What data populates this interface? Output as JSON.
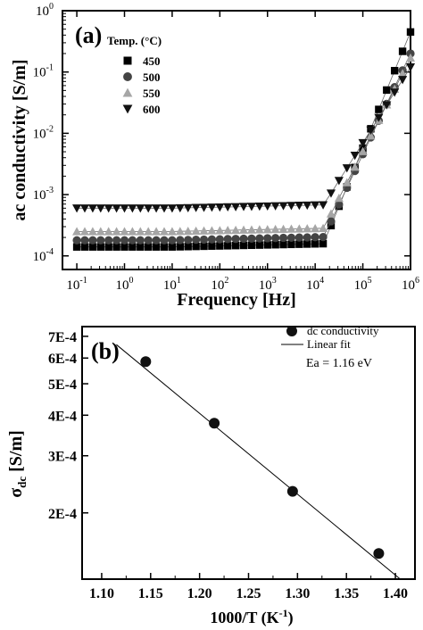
{
  "chart_data": [
    {
      "panel_label": "(a)",
      "type": "scatter",
      "xlabel": "Frequency [Hz]",
      "ylabel": "ac conductivity [S/m]",
      "xscale": "log",
      "yscale": "log",
      "xlim": [
        0.05,
        1000000
      ],
      "ylim": [
        6e-05,
        1
      ],
      "x_ticks": [
        {
          "value": 0.1,
          "base": "10",
          "exp": "-1"
        },
        {
          "value": 1,
          "base": "10",
          "exp": "0"
        },
        {
          "value": 10,
          "base": "10",
          "exp": "1"
        },
        {
          "value": 100,
          "base": "10",
          "exp": "2"
        },
        {
          "value": 1000,
          "base": "10",
          "exp": "3"
        },
        {
          "value": 10000,
          "base": "10",
          "exp": "4"
        },
        {
          "value": 100000,
          "base": "10",
          "exp": "5"
        },
        {
          "value": 1000000,
          "base": "10",
          "exp": "6"
        }
      ],
      "y_ticks": [
        {
          "value": 0.0001,
          "base": "10",
          "exp": "-4"
        },
        {
          "value": 0.001,
          "base": "10",
          "exp": "-3"
        },
        {
          "value": 0.01,
          "base": "10",
          "exp": "-2"
        },
        {
          "value": 0.1,
          "base": "10",
          "exp": "-1"
        },
        {
          "value": 1,
          "base": "10",
          "exp": "0"
        }
      ],
      "legend_title": "Temp. (°C)",
      "legend_position": "top-left",
      "series": [
        {
          "name": "450",
          "marker": "square",
          "color": "#000000",
          "dc_level": 0.00014,
          "high_freq_value_at_1e6": 0.45
        },
        {
          "name": "500",
          "marker": "circle",
          "color": "#444444",
          "dc_level": 0.00018,
          "high_freq_value_at_1e6": 0.2
        },
        {
          "name": "550",
          "marker": "triangle-up",
          "color": "#a6a6a6",
          "dc_level": 0.00025,
          "high_freq_value_at_1e6": 0.17
        },
        {
          "name": "600",
          "marker": "triangle-down",
          "color": "#111111",
          "dc_level": 0.0006,
          "high_freq_value_at_1e6": 0.12
        }
      ],
      "frequency_sweep": {
        "start": 0.1,
        "end": 1000000,
        "points_per_decade": 6
      }
    },
    {
      "panel_label": "(b)",
      "type": "scatter",
      "xlabel": "1000/T (K",
      "xlabel_sup": "-1",
      "xlabel_end": ")",
      "ylabel_main": "σ",
      "ylabel_sub": "dc",
      "ylabel_unit": " [S/m]",
      "xlim": [
        1.08,
        1.42
      ],
      "ylim": [
        0.000125,
        0.00075
      ],
      "yscale": "log",
      "x_ticks": [
        "1.10",
        "1.15",
        "1.20",
        "1.25",
        "1.30",
        "1.35",
        "1.40"
      ],
      "y_ticks": [
        {
          "value": 0.0002,
          "label": "2E-4"
        },
        {
          "value": 0.0003,
          "label": "3E-4"
        },
        {
          "value": 0.0004,
          "label": "4E-4"
        },
        {
          "value": 0.0005,
          "label": "5E-4"
        },
        {
          "value": 0.0006,
          "label": "6E-4"
        },
        {
          "value": 0.0007,
          "label": "7E-4"
        }
      ],
      "series": [
        {
          "name": "dc conductivity",
          "x": [
            1.145,
            1.215,
            1.295,
            1.383
          ],
          "y": [
            0.000585,
            0.000378,
            0.000233,
            0.00015
          ]
        },
        {
          "name": "Linear fit",
          "x": [
            1.115,
            1.405
          ],
          "y": [
            0.00066,
            0.000125
          ]
        }
      ],
      "annotation": "Ea = 1.16 eV",
      "legend_position": "top-right"
    }
  ]
}
